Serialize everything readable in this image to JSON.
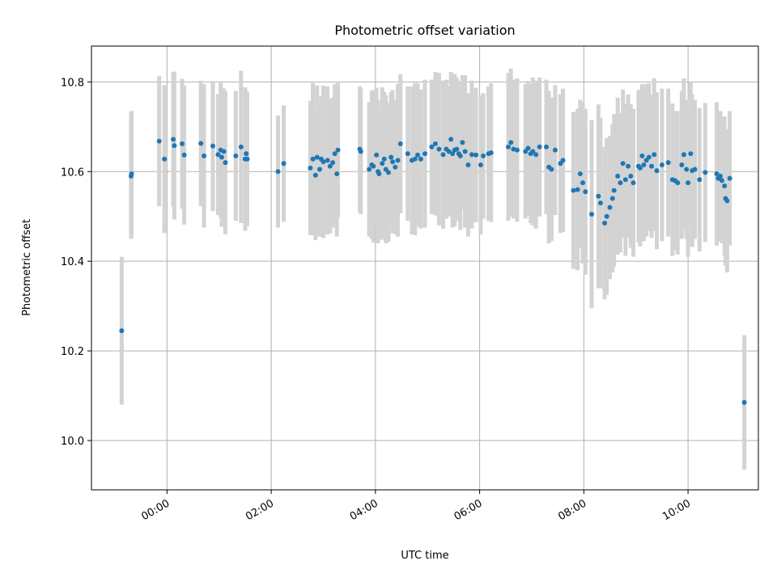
{
  "chart_data": {
    "type": "scatter",
    "title": "Photometric offset variation",
    "xlabel": "UTC time",
    "ylabel": "Photometric offset",
    "x_unit": "hours",
    "xlim": [
      -1.45,
      11.35
    ],
    "ylim": [
      9.89,
      10.88
    ],
    "xticks": [
      0,
      2,
      4,
      6,
      8,
      10
    ],
    "xtick_labels": [
      "00:00",
      "02:00",
      "04:00",
      "06:00",
      "08:00",
      "10:00"
    ],
    "yticks": [
      10.0,
      10.2,
      10.4,
      10.6,
      10.8
    ],
    "ytick_labels": [
      "10.0",
      "10.2",
      "10.4",
      "10.6",
      "10.8"
    ],
    "grid": true,
    "colors": {
      "marker": "#1f77b4",
      "errorbar": "#d3d3d3",
      "grid": "#b0b0b0"
    },
    "series": [
      {
        "x": [
          -0.87,
          -0.69,
          -0.68,
          -0.15,
          -0.05,
          0.12,
          0.14,
          0.29,
          0.33,
          0.65,
          0.71,
          0.88,
          0.98,
          1.03,
          1.05,
          1.09,
          1.12,
          1.32,
          1.42,
          1.5,
          1.52,
          1.54,
          2.13,
          2.24,
          2.75,
          2.8,
          2.85,
          2.88,
          2.93,
          2.96,
          3.0,
          3.08,
          3.13,
          3.18,
          3.22,
          3.26,
          3.28,
          3.7,
          3.72,
          3.88,
          3.93,
          3.96,
          4.02,
          4.05,
          4.07,
          4.13,
          4.17,
          4.2,
          4.25,
          4.3,
          4.33,
          4.38,
          4.43,
          4.48,
          4.62,
          4.7,
          4.76,
          4.81,
          4.87,
          4.95,
          5.08,
          5.15,
          5.22,
          5.3,
          5.36,
          5.41,
          5.45,
          5.48,
          5.52,
          5.56,
          5.6,
          5.63,
          5.67,
          5.72,
          5.78,
          5.85,
          5.93,
          6.02,
          6.07,
          6.17,
          6.22,
          6.55,
          6.6,
          6.65,
          6.72,
          6.88,
          6.93,
          6.98,
          7.02,
          7.08,
          7.15,
          7.28,
          7.33,
          7.38,
          7.45,
          7.55,
          7.6,
          7.8,
          7.88,
          7.93,
          7.98,
          8.03,
          8.15,
          8.28,
          8.32,
          8.4,
          8.44,
          8.5,
          8.55,
          8.58,
          8.65,
          8.7,
          8.75,
          8.8,
          8.85,
          8.9,
          8.95,
          9.05,
          9.08,
          9.12,
          9.15,
          9.2,
          9.25,
          9.3,
          9.35,
          9.4,
          9.5,
          9.62,
          9.7,
          9.75,
          9.8,
          9.88,
          9.92,
          9.97,
          10.0,
          10.05,
          10.08,
          10.13,
          10.22,
          10.33,
          10.55,
          10.58,
          10.62,
          10.65,
          10.7,
          10.72,
          10.75,
          10.8,
          11.08
        ],
        "y": [
          10.245,
          10.59,
          10.595,
          10.668,
          10.628,
          10.672,
          10.658,
          10.662,
          10.637,
          10.663,
          10.635,
          10.657,
          10.638,
          10.648,
          10.632,
          10.645,
          10.62,
          10.635,
          10.655,
          10.628,
          10.64,
          10.628,
          10.6,
          10.618,
          10.608,
          10.628,
          10.592,
          10.632,
          10.605,
          10.628,
          10.622,
          10.625,
          10.612,
          10.62,
          10.64,
          10.595,
          10.648,
          10.65,
          10.645,
          10.605,
          10.615,
          10.612,
          10.637,
          10.6,
          10.595,
          10.618,
          10.628,
          10.605,
          10.598,
          10.632,
          10.622,
          10.61,
          10.625,
          10.662,
          10.64,
          10.625,
          10.628,
          10.637,
          10.628,
          10.64,
          10.655,
          10.662,
          10.65,
          10.638,
          10.65,
          10.645,
          10.672,
          10.64,
          10.648,
          10.65,
          10.64,
          10.635,
          10.665,
          10.645,
          10.615,
          10.638,
          10.637,
          10.615,
          10.635,
          10.64,
          10.642,
          10.655,
          10.665,
          10.65,
          10.648,
          10.645,
          10.652,
          10.64,
          10.645,
          10.638,
          10.655,
          10.655,
          10.61,
          10.605,
          10.648,
          10.618,
          10.625,
          10.558,
          10.56,
          10.595,
          10.575,
          10.555,
          10.505,
          10.545,
          10.53,
          10.485,
          10.5,
          10.52,
          10.54,
          10.558,
          10.59,
          10.575,
          10.618,
          10.582,
          10.612,
          10.59,
          10.575,
          10.612,
          10.608,
          10.635,
          10.615,
          10.625,
          10.632,
          10.612,
          10.638,
          10.602,
          10.615,
          10.62,
          10.582,
          10.58,
          10.575,
          10.615,
          10.638,
          10.605,
          10.575,
          10.64,
          10.602,
          10.605,
          10.582,
          10.598,
          10.595,
          10.585,
          10.59,
          10.58,
          10.568,
          10.54,
          10.535,
          10.585,
          10.085
        ],
        "yerr": [
          0.165,
          0.14,
          0.14,
          0.145,
          0.165,
          0.15,
          0.165,
          0.145,
          0.155,
          0.14,
          0.16,
          0.145,
          0.135,
          0.15,
          0.155,
          0.14,
          0.16,
          0.145,
          0.17,
          0.16,
          0.14,
          0.15,
          0.125,
          0.13,
          0.15,
          0.17,
          0.145,
          0.16,
          0.15,
          0.14,
          0.17,
          0.165,
          0.15,
          0.145,
          0.155,
          0.14,
          0.15,
          0.14,
          0.14,
          0.15,
          0.165,
          0.17,
          0.15,
          0.16,
          0.145,
          0.17,
          0.15,
          0.165,
          0.155,
          0.145,
          0.16,
          0.15,
          0.17,
          0.155,
          0.15,
          0.165,
          0.17,
          0.16,
          0.155,
          0.165,
          0.15,
          0.16,
          0.17,
          0.165,
          0.155,
          0.145,
          0.15,
          0.165,
          0.17,
          0.16,
          0.15,
          0.165,
          0.15,
          0.17,
          0.16,
          0.165,
          0.15,
          0.155,
          0.14,
          0.15,
          0.155,
          0.165,
          0.165,
          0.155,
          0.16,
          0.15,
          0.15,
          0.155,
          0.165,
          0.165,
          0.155,
          0.15,
          0.17,
          0.16,
          0.145,
          0.155,
          0.16,
          0.175,
          0.18,
          0.165,
          0.18,
          0.185,
          0.21,
          0.205,
          0.19,
          0.17,
          0.175,
          0.16,
          0.165,
          0.17,
          0.175,
          0.155,
          0.165,
          0.17,
          0.16,
          0.16,
          0.165,
          0.17,
          0.175,
          0.16,
          0.17,
          0.17,
          0.165,
          0.16,
          0.17,
          0.175,
          0.17,
          0.165,
          0.17,
          0.155,
          0.16,
          0.165,
          0.17,
          0.155,
          0.165,
          0.16,
          0.17,
          0.155,
          0.16,
          0.155,
          0.16,
          0.14,
          0.145,
          0.14,
          0.155,
          0.15,
          0.16,
          0.15,
          0.15
        ]
      }
    ]
  }
}
